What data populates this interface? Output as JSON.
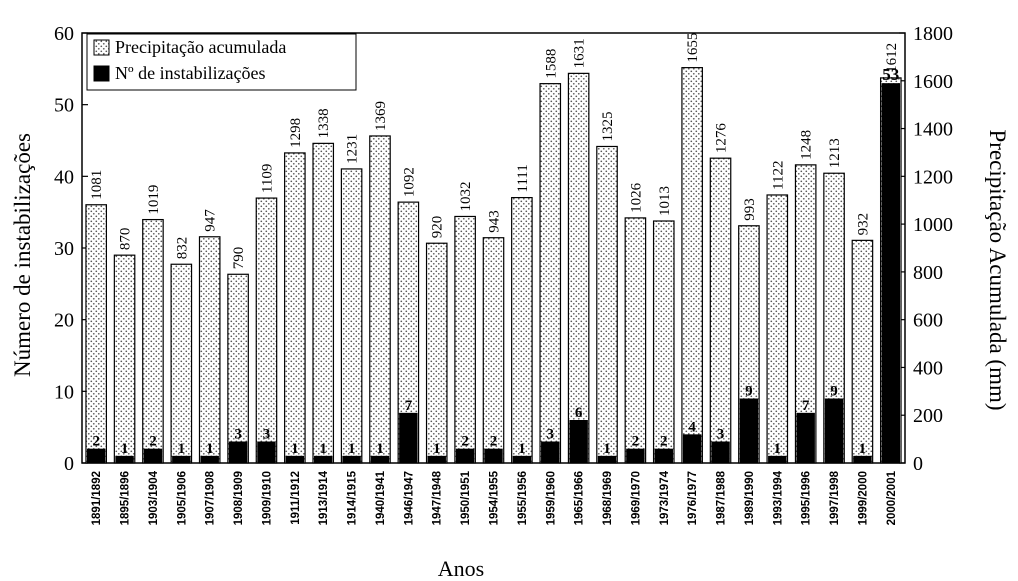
{
  "chart_data": {
    "type": "bar",
    "categories": [
      "1891/1892",
      "1895/1896",
      "1903/1904",
      "1905/1906",
      "1907/1908",
      "1908/1909",
      "1909/1910",
      "1911/1912",
      "1913/1914",
      "1914/1915",
      "1940/1941",
      "1946/1947",
      "1947/1948",
      "1950/1951",
      "1954/1955",
      "1955/1956",
      "1959/1960",
      "1965/1966",
      "1968/1969",
      "1969/1970",
      "1973/1974",
      "1976/1977",
      "1987/1988",
      "1989/1990",
      "1993/1994",
      "1995/1996",
      "1997/1998",
      "1999/2000",
      "2000/2001"
    ],
    "series": [
      {
        "name": "Precipitação acumulada",
        "axis": "right",
        "pattern": "dotted",
        "values": [
          1081,
          870,
          1019,
          832,
          947,
          790,
          1109,
          1298,
          1338,
          1231,
          1369,
          1092,
          920,
          1032,
          943,
          1111,
          1588,
          1631,
          1325,
          1026,
          1013,
          1655,
          1276,
          993,
          1122,
          1248,
          1213,
          932,
          1612
        ]
      },
      {
        "name": "Nº de instabilizações",
        "axis": "left",
        "pattern": "solid",
        "values": [
          2,
          1,
          2,
          1,
          1,
          3,
          3,
          1,
          1,
          1,
          1,
          7,
          1,
          2,
          2,
          1,
          3,
          6,
          1,
          2,
          2,
          4,
          3,
          9,
          1,
          7,
          9,
          1,
          53
        ]
      }
    ],
    "xlabel": "Anos",
    "ylabel_left": "Número de instabilizações",
    "ylabel_right": "Precipitação Acumulada (mm)",
    "ylim_left": [
      0,
      60
    ],
    "ylim_right": [
      0,
      1800
    ],
    "yticks_left": [
      "0",
      "10",
      "20",
      "30",
      "40",
      "50",
      "60"
    ],
    "yticks_right": [
      "0",
      "200",
      "400",
      "600",
      "800",
      "1000",
      "1200",
      "1400",
      "1600",
      "1800"
    ],
    "grid": false,
    "legend_position": "top-left",
    "colors": {
      "bar_fill": "#000000",
      "pattern_bg": "#ffffff",
      "pattern_dot": "#555555",
      "axis": "#000000"
    }
  }
}
